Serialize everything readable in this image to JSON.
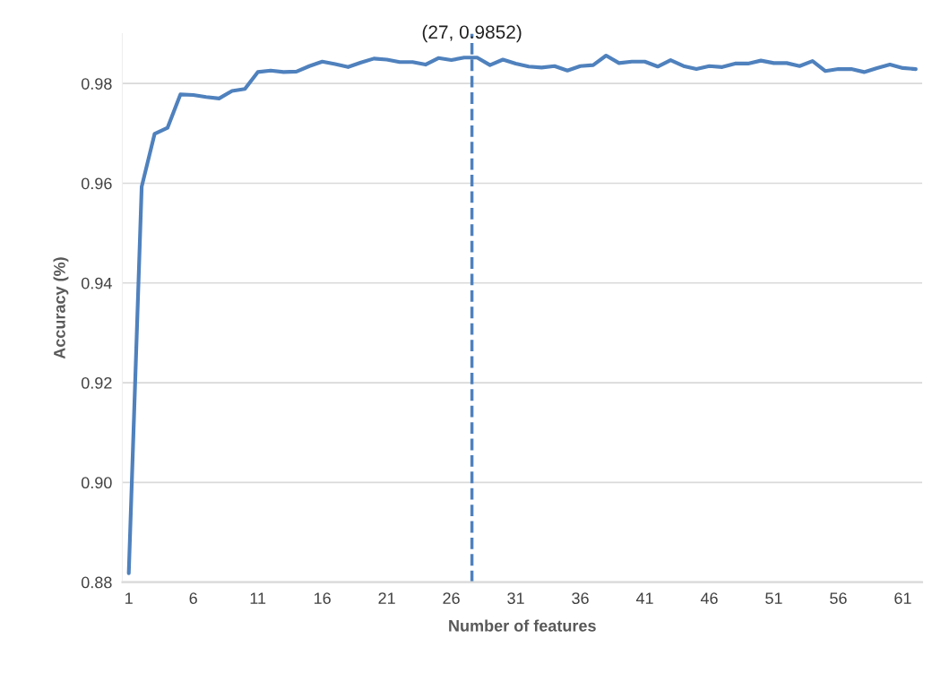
{
  "chart_data": {
    "type": "line",
    "xlabel": "Number of features",
    "ylabel": "Accuracy (%)",
    "x": [
      1,
      2,
      3,
      4,
      5,
      6,
      7,
      8,
      9,
      10,
      11,
      12,
      13,
      14,
      15,
      16,
      17,
      18,
      19,
      20,
      21,
      22,
      23,
      24,
      25,
      26,
      27,
      28,
      29,
      30,
      31,
      32,
      33,
      34,
      35,
      36,
      37,
      38,
      39,
      40,
      41,
      42,
      43,
      44,
      45,
      46,
      47,
      48,
      49,
      50,
      51,
      52,
      53,
      54,
      55,
      56,
      57,
      58,
      59,
      60,
      61,
      62
    ],
    "series": [
      {
        "color": "#4f81bd",
        "values": [
          0.8818,
          0.9593,
          0.9699,
          0.9711,
          0.9778,
          0.9777,
          0.9773,
          0.977,
          0.9785,
          0.9789,
          0.9823,
          0.9826,
          0.9823,
          0.9824,
          0.9835,
          0.9844,
          0.9839,
          0.9833,
          0.9842,
          0.985,
          0.9848,
          0.9843,
          0.9843,
          0.9838,
          0.9851,
          0.9847,
          0.9852,
          0.9852,
          0.9837,
          0.9848,
          0.984,
          0.9834,
          0.9832,
          0.9835,
          0.9826,
          0.9835,
          0.9837,
          0.9856,
          0.9841,
          0.9844,
          0.9844,
          0.9834,
          0.9847,
          0.9835,
          0.9829,
          0.9835,
          0.9833,
          0.984,
          0.984,
          0.9846,
          0.9841,
          0.9841,
          0.9835,
          0.9845,
          0.9825,
          0.9829,
          0.9829,
          0.9823,
          0.9831,
          0.9838,
          0.9831,
          0.9829
        ]
      }
    ],
    "xlim": [
      0.5,
      62.5
    ],
    "xticks": [
      1,
      6,
      11,
      16,
      21,
      26,
      31,
      36,
      41,
      46,
      51,
      56,
      61
    ],
    "ylim": [
      0.88,
      0.99
    ],
    "yticks": [
      {
        "value": 0.88,
        "label": "0.88"
      },
      {
        "value": 0.9,
        "label": "0.90"
      },
      {
        "value": 0.92,
        "label": "0.92"
      },
      {
        "value": 0.94,
        "label": "0.94"
      },
      {
        "value": 0.96,
        "label": "0.96"
      },
      {
        "value": 0.98,
        "label": "0.98"
      }
    ],
    "ref_lines": [
      {
        "axis": "x",
        "value": 27.6,
        "color": "#4f81bd",
        "line_style": "dashed"
      }
    ],
    "annotations": [
      "(27, 0.9852)"
    ],
    "grid": "y",
    "legend": false,
    "marker": "none",
    "line_style": "solid"
  }
}
